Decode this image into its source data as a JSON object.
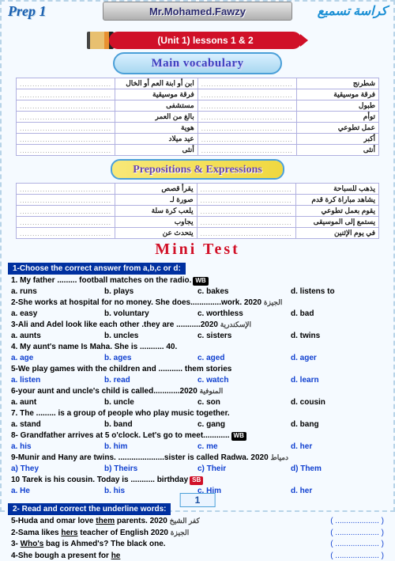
{
  "header": {
    "grade": "Prep 1",
    "teacher": "Mr.Mohamed.Fawzy",
    "arabic_title": "كراسة تسميع"
  },
  "unit_label": "(Unit 1) lessons  1 & 2",
  "section_vocab": "Main vocabulary",
  "section_prep": "Prepositions  & Expressions",
  "mini_test": "Mini  Test",
  "vocab_rows": [
    [
      "شطرنج",
      "",
      "",
      "ابن أو ابنة العم أو الخال"
    ],
    [
      "فرقة موسيقية",
      "",
      "",
      "فرقة موسيقية"
    ],
    [
      "طبول",
      "",
      "",
      "مستشفى"
    ],
    [
      "توأم",
      "",
      "",
      "بالغ من العمر"
    ],
    [
      "عمل تطوعي",
      "",
      "",
      "هوية"
    ],
    [
      "أكبر",
      "",
      "",
      "عيد ميلاد"
    ],
    [
      "أنثى",
      "",
      "",
      "أنثى"
    ]
  ],
  "prep_rows": [
    [
      "يذهب للسباحة",
      "",
      "",
      "يقرأ قصص"
    ],
    [
      "يشاهد مباراة كرة قدم",
      "",
      "",
      "صورة لـ"
    ],
    [
      "يقوم بعمل تطوعي",
      "",
      "",
      "يلعب كرة سلة"
    ],
    [
      "يستمع إلى الموسيقى",
      "",
      "",
      "يجاوب"
    ],
    [
      "في يوم الإثنين",
      "",
      "",
      "يتحدث عن"
    ]
  ],
  "instr1": "1-Choose the correct answer from a,b,c or d:",
  "instr2": "2- Read and correct the underline words:",
  "qs": [
    {
      "t": "1. My father ......... football matches on the radio.",
      "badge": "WB",
      "badgeCls": "",
      "ar": "",
      "opts": [
        "a. runs",
        "b. plays",
        "c. bakes",
        "d. listens to"
      ],
      "blue": false
    },
    {
      "t": "2-She works at hospital for no money. She does..............work. 2020",
      "badge": "",
      "ar": "الجيزة",
      "opts": [
        "a. easy",
        "b. voluntary",
        "c. worthless",
        "d. bad"
      ],
      "blue": false
    },
    {
      "t": "3-Ali and Adel look like each other .they are ...........2020",
      "badge": "",
      "ar": "الإسكندرية",
      "opts": [
        "a. aunts",
        "b. uncles",
        "c. sisters",
        "d. twins"
      ],
      "blue": false
    },
    {
      "t": "4. My aunt's name Is Maha. She is  ........... 40.",
      "badge": "",
      "ar": "",
      "opts": [
        "a. age",
        "b. ages",
        "c. aged",
        "d. ager"
      ],
      "blue": true
    },
    {
      "t": "5-We play games with the children and ........... them stories",
      "badge": "",
      "ar": "",
      "opts": [
        "a. listen",
        "b. read",
        "c. watch",
        "d. learn"
      ],
      "blue": true
    },
    {
      "t": "6-your aunt and uncle's  child is called............2020",
      "badge": "",
      "ar": "المنوفية",
      "opts": [
        "a. aunt",
        "b. uncle",
        "c. son",
        "d. cousin"
      ],
      "blue": false
    },
    {
      "t": "7. The ......... is a group of people who play music together.",
      "badge": "",
      "ar": "",
      "opts": [
        "a. stand",
        "b. band",
        "c. gang",
        "d. bang"
      ],
      "blue": false
    },
    {
      "t": "8- Grandfather arrives at 5 o'clock. Let's go to meet............",
      "badge": "WB",
      "badgeCls": "",
      "ar": "",
      "opts": [
        "a. his",
        "b. him",
        "c. me",
        "d. her"
      ],
      "blue": true
    },
    {
      "t": "9-Munir and Hany are twins. .....................sister is called Radwa. 2020",
      "badge": "",
      "ar": "دمياط",
      "opts": [
        "a) They",
        "b) Theirs",
        "c) Their",
        "d) Them"
      ],
      "blue": true
    },
    {
      "t": "10 Tarek is his cousin. Today is ........... birthday",
      "badge": "SB",
      "badgeCls": "red",
      "ar": "",
      "opts": [
        "a. He",
        "b. his",
        "c. Him",
        "d. her"
      ],
      "blue": true
    }
  ],
  "sec2": [
    {
      "t": "5-Huda and omar love <u>them</u> parents. 2020",
      "ar": "كفر الشيخ"
    },
    {
      "t": "2-Sama likes <u>hers</u> teacher of English  2020",
      "ar": "الجيزة"
    },
    {
      "t": "3- <u>Who's</u> bag is Ahmed's? The black one.",
      "ar": ""
    },
    {
      "t": "4-She bough a present for <u>he</u>",
      "ar": ""
    }
  ],
  "page": "1"
}
